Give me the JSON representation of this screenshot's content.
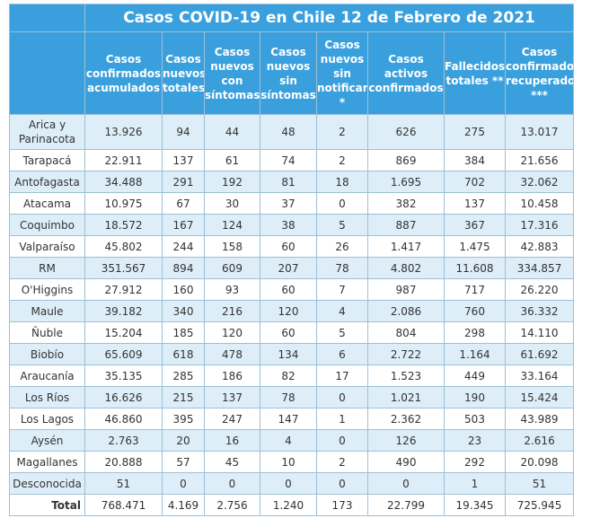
{
  "title": "Casos COVID-19 en Chile 12 de Febrero de 2021",
  "headers": [
    "Casos confirmados acumulados",
    "Casos nuevos totales",
    "Casos nuevos con síntomas",
    "Casos nuevos sin síntomas",
    "Casos nuevos sin notificar *",
    "Casos activos confirmados",
    "Fallecidos totales **",
    "Casos confirmados recuperados ***"
  ],
  "rows": [
    {
      "region": "Arica y Parinacota",
      "values": [
        "13.926",
        "94",
        "44",
        "48",
        "2",
        "626",
        "275",
        "13.017"
      ]
    },
    {
      "region": "Tarapacá",
      "values": [
        "22.911",
        "137",
        "61",
        "74",
        "2",
        "869",
        "384",
        "21.656"
      ]
    },
    {
      "region": "Antofagasta",
      "values": [
        "34.488",
        "291",
        "192",
        "81",
        "18",
        "1.695",
        "702",
        "32.062"
      ]
    },
    {
      "region": "Atacama",
      "values": [
        "10.975",
        "67",
        "30",
        "37",
        "0",
        "382",
        "137",
        "10.458"
      ]
    },
    {
      "region": "Coquimbo",
      "values": [
        "18.572",
        "167",
        "124",
        "38",
        "5",
        "887",
        "367",
        "17.316"
      ]
    },
    {
      "region": "Valparaíso",
      "values": [
        "45.802",
        "244",
        "158",
        "60",
        "26",
        "1.417",
        "1.475",
        "42.883"
      ]
    },
    {
      "region": "RM",
      "values": [
        "351.567",
        "894",
        "609",
        "207",
        "78",
        "4.802",
        "11.608",
        "334.857"
      ]
    },
    {
      "region": "O'Higgins",
      "values": [
        "27.912",
        "160",
        "93",
        "60",
        "7",
        "987",
        "717",
        "26.220"
      ]
    },
    {
      "region": "Maule",
      "values": [
        "39.182",
        "340",
        "216",
        "120",
        "4",
        "2.086",
        "760",
        "36.332"
      ]
    },
    {
      "region": "Ñuble",
      "values": [
        "15.204",
        "185",
        "120",
        "60",
        "5",
        "804",
        "298",
        "14.110"
      ]
    },
    {
      "region": "Biobío",
      "values": [
        "65.609",
        "618",
        "478",
        "134",
        "6",
        "2.722",
        "1.164",
        "61.692"
      ]
    },
    {
      "region": "Araucanía",
      "values": [
        "35.135",
        "285",
        "186",
        "82",
        "17",
        "1.523",
        "449",
        "33.164"
      ]
    },
    {
      "region": "Los Ríos",
      "values": [
        "16.626",
        "215",
        "137",
        "78",
        "0",
        "1.021",
        "190",
        "15.424"
      ]
    },
    {
      "region": "Los Lagos",
      "values": [
        "46.860",
        "395",
        "247",
        "147",
        "1",
        "2.362",
        "503",
        "43.989"
      ]
    },
    {
      "region": "Aysén",
      "values": [
        "2.763",
        "20",
        "16",
        "4",
        "0",
        "126",
        "23",
        "2.616"
      ]
    },
    {
      "region": "Magallanes",
      "values": [
        "20.888",
        "57",
        "45",
        "10",
        "2",
        "490",
        "292",
        "20.098"
      ]
    },
    {
      "region": "Desconocida",
      "values": [
        "51",
        "0",
        "0",
        "0",
        "0",
        "0",
        "1",
        "51"
      ]
    }
  ],
  "total": {
    "label": "Total",
    "values": [
      "768.471",
      "4.169",
      "2.756",
      "1.240",
      "173",
      "22.799",
      "19.345",
      "725.945"
    ]
  },
  "colors": {
    "header_bg": "#3aa0dd",
    "header_text": "#ffffff",
    "row_alt": "#ddeef9",
    "border": "#9dbfd6"
  }
}
